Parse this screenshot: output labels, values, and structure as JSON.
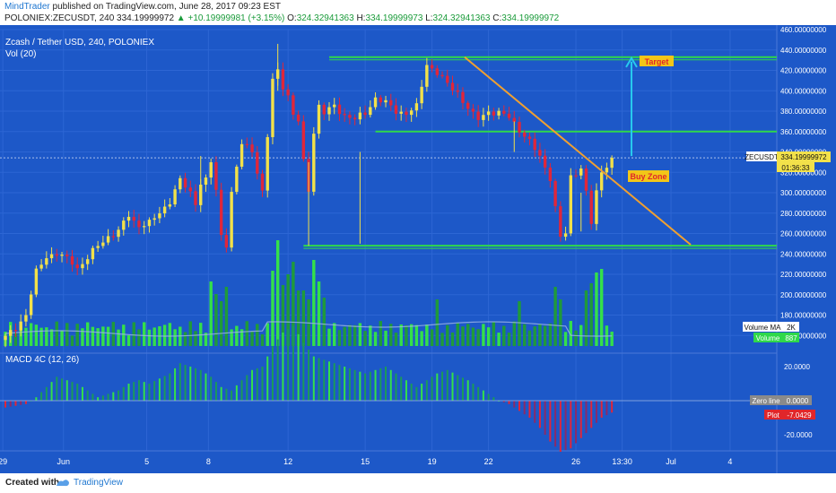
{
  "header": {
    "author": "MindTrader",
    "published_text": "published on TradingView.com, June 28, 2017 09:23 EST",
    "symbol_line": "POLONIEX:ZECUSDT, 240",
    "last_price": "334.19999972",
    "change": "▲ +10.19999981 (+3.15%)",
    "o_label": "O:",
    "o_value": "324.32941363",
    "h_label": "H:",
    "h_value": "334.19999973",
    "l_label": "L:",
    "l_value": "324.32941363",
    "c_label": "C:",
    "c_value": "334.19999972"
  },
  "chart_title": "Zcash / Tether USD, 240, POLONIEX",
  "volume_label": "Vol (20)",
  "macd_label": "MACD 4C (12, 26)",
  "annotations": {
    "target": "Target",
    "buy_zone": "Buy Zone"
  },
  "price_tag": {
    "symbol": "ZECUSDT",
    "price": "334.19999972",
    "countdown": "01:36:33"
  },
  "volume_tags": {
    "ma_label": "Volume MA",
    "ma_value": "2K",
    "vol_label": "Volume",
    "vol_value": "887"
  },
  "macd_tags": {
    "zero_label": "Zero line",
    "zero_value": "0.0000",
    "plot_label": "Plot",
    "plot_value": "-7.0429"
  },
  "footer": {
    "created_with": "Created with",
    "brand": "TradingView"
  },
  "colors": {
    "background": "#1d58c8",
    "up_candle": "#f2e14a",
    "down_candle": "#e0263a",
    "volume_up": "#34e04a",
    "green_line": "#2fd84a",
    "trendline": "#f0a030",
    "arrow": "#27c9ee",
    "label_bg": "#f2c618",
    "label_text": "#e0262a"
  },
  "chart_data": {
    "type": "candlestick",
    "x_ticks": [
      "29",
      "Jun",
      "5",
      "8",
      "12",
      "15",
      "19",
      "22",
      "26",
      "13:30",
      "Jul",
      "4"
    ],
    "price_ticks": [
      "460.00000000",
      "440.00000000",
      "420.00000000",
      "400.00000000",
      "380.00000000",
      "360.00000000",
      "340.00000000",
      "320.00000000",
      "300.00000000",
      "280.00000000",
      "260.00000000",
      "240.00000000",
      "220.00000000",
      "200.00000000",
      "180.00000000",
      "160.00000000"
    ],
    "price_range": [
      140,
      460
    ],
    "macd_ticks": [
      "20.0000",
      "-20.0000"
    ],
    "levels": {
      "target": 433,
      "resistance": 360,
      "support": 248
    },
    "trendline": {
      "start": [
        20.6,
        433
      ],
      "end": [
        31.8,
        249
      ]
    },
    "target_arrow": {
      "x": 29.2,
      "from": 336,
      "to": 432
    },
    "last_price": 334.2,
    "close_anchors": [
      [
        0,
        158
      ],
      [
        2,
        168
      ],
      [
        4,
        180
      ],
      [
        6,
        222
      ],
      [
        8,
        238
      ],
      [
        10,
        240
      ],
      [
        12,
        235
      ],
      [
        13,
        232
      ],
      [
        14,
        226
      ],
      [
        16,
        236
      ],
      [
        18,
        248
      ],
      [
        20,
        257
      ],
      [
        22,
        262
      ],
      [
        24,
        278
      ],
      [
        25,
        272
      ],
      [
        26,
        268
      ],
      [
        28,
        270
      ],
      [
        30,
        280
      ],
      [
        32,
        292
      ],
      [
        34,
        312
      ],
      [
        36,
        300
      ],
      [
        37,
        290
      ],
      [
        38,
        310
      ],
      [
        39,
        312
      ],
      [
        40,
        330
      ],
      [
        41,
        302
      ],
      [
        42,
        258
      ],
      [
        43,
        250
      ],
      [
        44,
        300
      ],
      [
        46,
        348
      ],
      [
        48,
        342
      ],
      [
        50,
        300
      ],
      [
        52,
        410
      ],
      [
        53,
        420
      ],
      [
        54,
        405
      ],
      [
        55,
        395
      ],
      [
        56,
        376
      ],
      [
        57,
        370
      ],
      [
        58,
        330
      ],
      [
        59,
        303
      ],
      [
        60,
        360
      ],
      [
        61,
        385
      ],
      [
        62,
        378
      ],
      [
        64,
        385
      ],
      [
        66,
        376
      ],
      [
        68,
        372
      ],
      [
        70,
        378
      ],
      [
        72,
        393
      ],
      [
        74,
        388
      ],
      [
        76,
        380
      ],
      [
        78,
        378
      ],
      [
        80,
        384
      ],
      [
        82,
        426
      ],
      [
        84,
        418
      ],
      [
        86,
        406
      ],
      [
        88,
        398
      ],
      [
        90,
        383
      ],
      [
        91,
        376
      ],
      [
        92,
        372
      ],
      [
        94,
        380
      ],
      [
        96,
        378
      ],
      [
        98,
        374
      ],
      [
        100,
        362
      ],
      [
        102,
        350
      ],
      [
        104,
        335
      ],
      [
        106,
        315
      ],
      [
        107,
        285
      ],
      [
        108,
        256
      ],
      [
        109,
        260
      ],
      [
        110,
        315
      ],
      [
        112,
        325
      ],
      [
        113,
        300
      ],
      [
        114,
        270
      ],
      [
        115,
        300
      ],
      [
        116,
        320
      ],
      [
        117,
        328
      ],
      [
        118,
        334
      ]
    ],
    "volume_spikes": [
      [
        40,
        72
      ],
      [
        41,
        58
      ],
      [
        42,
        50
      ],
      [
        43,
        66
      ],
      [
        52,
        84
      ],
      [
        53,
        118
      ],
      [
        54,
        68
      ],
      [
        55,
        80
      ],
      [
        56,
        94
      ],
      [
        57,
        62
      ],
      [
        58,
        62
      ],
      [
        59,
        52
      ],
      [
        60,
        96
      ],
      [
        61,
        72
      ],
      [
        62,
        54
      ],
      [
        84,
        52
      ],
      [
        100,
        50
      ],
      [
        107,
        66
      ],
      [
        108,
        52
      ],
      [
        113,
        62
      ],
      [
        114,
        70
      ],
      [
        115,
        82
      ],
      [
        116,
        86
      ]
    ],
    "macd_histogram": [
      [
        0,
        -4
      ],
      [
        4,
        -2
      ],
      [
        6,
        2
      ],
      [
        8,
        8
      ],
      [
        10,
        14
      ],
      [
        12,
        12
      ],
      [
        14,
        10
      ],
      [
        16,
        6
      ],
      [
        18,
        2
      ],
      [
        20,
        4
      ],
      [
        22,
        6
      ],
      [
        24,
        10
      ],
      [
        26,
        12
      ],
      [
        28,
        10
      ],
      [
        30,
        13
      ],
      [
        32,
        16
      ],
      [
        34,
        22
      ],
      [
        36,
        20
      ],
      [
        38,
        18
      ],
      [
        40,
        14
      ],
      [
        42,
        8
      ],
      [
        44,
        6
      ],
      [
        46,
        12
      ],
      [
        48,
        18
      ],
      [
        50,
        20
      ],
      [
        52,
        32
      ],
      [
        54,
        40
      ],
      [
        56,
        44
      ],
      [
        58,
        34
      ],
      [
        60,
        26
      ],
      [
        62,
        24
      ],
      [
        64,
        22
      ],
      [
        66,
        20
      ],
      [
        68,
        18
      ],
      [
        70,
        16
      ],
      [
        72,
        18
      ],
      [
        74,
        20
      ],
      [
        76,
        16
      ],
      [
        78,
        12
      ],
      [
        80,
        8
      ],
      [
        82,
        12
      ],
      [
        84,
        16
      ],
      [
        86,
        18
      ],
      [
        88,
        15
      ],
      [
        90,
        12
      ],
      [
        92,
        8
      ],
      [
        94,
        4
      ],
      [
        96,
        0
      ],
      [
        98,
        -2
      ],
      [
        100,
        -6
      ],
      [
        102,
        -10
      ],
      [
        104,
        -16
      ],
      [
        106,
        -24
      ],
      [
        108,
        -30
      ],
      [
        110,
        -28
      ],
      [
        112,
        -22
      ],
      [
        114,
        -16
      ],
      [
        116,
        -10
      ],
      [
        118,
        -7
      ]
    ]
  }
}
